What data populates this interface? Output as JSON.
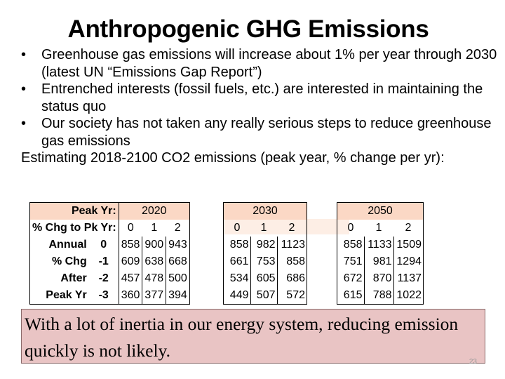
{
  "title": "Anthropogenic GHG Emissions",
  "bullets": [
    {
      "marker": "•",
      "text": "Greenhouse gas emissions will increase about 1% per year through 2030 (latest UN “Emissions Gap Report”)"
    },
    {
      "marker": "•",
      "text": "Entrenched interests (fossil fuels, etc.) are interested in maintaining the status quo"
    },
    {
      "marker": "•",
      "text": "Our society has not taken any really serious steps to reduce greenhouse gas emissions"
    }
  ],
  "estimating": "Estimating 2018-2100 CO2 emissions (peak year, % change per yr):",
  "table": {
    "peak_yr_label": "Peak Yr:",
    "chg_label": "% Chg to Pk Yr:",
    "row_labels": [
      "Annual",
      "% Chg",
      "After",
      "Peak Yr"
    ],
    "row_values": [
      "0",
      "-1",
      "-2",
      "-3"
    ],
    "groups": [
      {
        "year": "2020",
        "cols": [
          "0",
          "1",
          "2"
        ],
        "rows": [
          [
            "858",
            "900",
            "943"
          ],
          [
            "609",
            "638",
            "668"
          ],
          [
            "457",
            "478",
            "500"
          ],
          [
            "360",
            "377",
            "394"
          ]
        ]
      },
      {
        "year": "2030",
        "cols": [
          "0",
          "1",
          "2"
        ],
        "rows": [
          [
            "858",
            "982",
            "1123"
          ],
          [
            "661",
            "753",
            "858"
          ],
          [
            "534",
            "605",
            "686"
          ],
          [
            "449",
            "507",
            "572"
          ]
        ]
      },
      {
        "year": "2050",
        "cols": [
          "0",
          "1",
          "2"
        ],
        "rows": [
          [
            "858",
            "1133",
            "1509"
          ],
          [
            "751",
            "981",
            "1294"
          ],
          [
            "672",
            "870",
            "1137"
          ],
          [
            "615",
            "788",
            "1022"
          ]
        ]
      }
    ]
  },
  "note": "With a lot of inertia in our energy system, reducing emission quickly is not likely.",
  "page_number": "23",
  "colors": {
    "header_fill": "#fbd8c5",
    "note_fill": "#e9c4c4"
  }
}
